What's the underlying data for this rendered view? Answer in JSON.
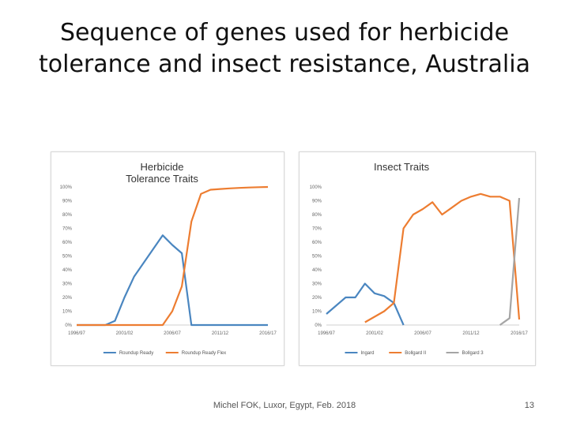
{
  "slide": {
    "title_line1": "Sequence of genes used for herbicide",
    "title_line2": "tolerance and insect resistance, Australia",
    "footer": "Michel FOK, Luxor, Egypt, Feb. 2018",
    "page_number": "13"
  },
  "chart_data": [
    {
      "type": "line",
      "title_lines": [
        "Herbicide",
        "Tolerance Traits"
      ],
      "x_labels": [
        "1996/97",
        "2001/02",
        "2006/07",
        "2011/12",
        "2016/17"
      ],
      "y_ticks": [
        "0%",
        "10%",
        "20%",
        "30%",
        "40%",
        "50%",
        "60%",
        "70%",
        "80%",
        "90%",
        "100%"
      ],
      "x": [
        "1996/97",
        "1997/98",
        "1998/99",
        "1999/00",
        "2000/01",
        "2001/02",
        "2002/03",
        "2003/04",
        "2004/05",
        "2005/06",
        "2006/07",
        "2007/08",
        "2008/09",
        "2009/10",
        "2010/11",
        "2011/12",
        "2012/13",
        "2013/14",
        "2014/15",
        "2015/16",
        "2016/17"
      ],
      "ylim": [
        0,
        100
      ],
      "legend_position": "bottom",
      "series": [
        {
          "name": "Roundup Ready",
          "color": "#4a86c0",
          "values": [
            0,
            0,
            0,
            0,
            3,
            20,
            35,
            45,
            55,
            65,
            58,
            52,
            0,
            0,
            0,
            0,
            0,
            0,
            0,
            0,
            0
          ]
        },
        {
          "name": "Roundup Ready Flex",
          "color": "#ed7d31",
          "values": [
            0,
            0,
            0,
            0,
            0,
            0,
            0,
            0,
            0,
            0,
            10,
            28,
            75,
            95,
            98,
            98.5,
            99,
            99.3,
            99.6,
            99.8,
            100
          ]
        }
      ]
    },
    {
      "type": "line",
      "title_lines": [
        "Insect Traits"
      ],
      "x_labels": [
        "1996/97",
        "2001/02",
        "2006/07",
        "2011/12",
        "2016/17"
      ],
      "y_ticks": [
        "0%",
        "10%",
        "20%",
        "30%",
        "40%",
        "50%",
        "60%",
        "70%",
        "80%",
        "90%",
        "100%"
      ],
      "x": [
        "1996/97",
        "1997/98",
        "1998/99",
        "1999/00",
        "2000/01",
        "2001/02",
        "2002/03",
        "2003/04",
        "2004/05",
        "2005/06",
        "2006/07",
        "2007/08",
        "2008/09",
        "2009/10",
        "2010/11",
        "2011/12",
        "2012/13",
        "2013/14",
        "2014/15",
        "2015/16",
        "2016/17"
      ],
      "ylim": [
        0,
        100
      ],
      "legend_position": "bottom",
      "series": [
        {
          "name": "Ingard",
          "color": "#4a86c0",
          "values": [
            8,
            14,
            20,
            20,
            30,
            23,
            21,
            16,
            0,
            null,
            null,
            null,
            null,
            null,
            null,
            null,
            null,
            null,
            null,
            null,
            null
          ]
        },
        {
          "name": "Bollgard II",
          "color": "#ed7d31",
          "values": [
            null,
            null,
            null,
            null,
            2,
            6,
            10,
            16,
            70,
            80,
            84,
            89,
            80,
            85,
            90,
            93,
            95,
            93,
            93,
            90,
            4
          ]
        },
        {
          "name": "Bollgard 3",
          "color": "#a5a5a5",
          "values": [
            null,
            null,
            null,
            null,
            null,
            null,
            null,
            null,
            null,
            null,
            null,
            null,
            null,
            null,
            null,
            null,
            null,
            null,
            0,
            5,
            92
          ]
        }
      ]
    }
  ]
}
